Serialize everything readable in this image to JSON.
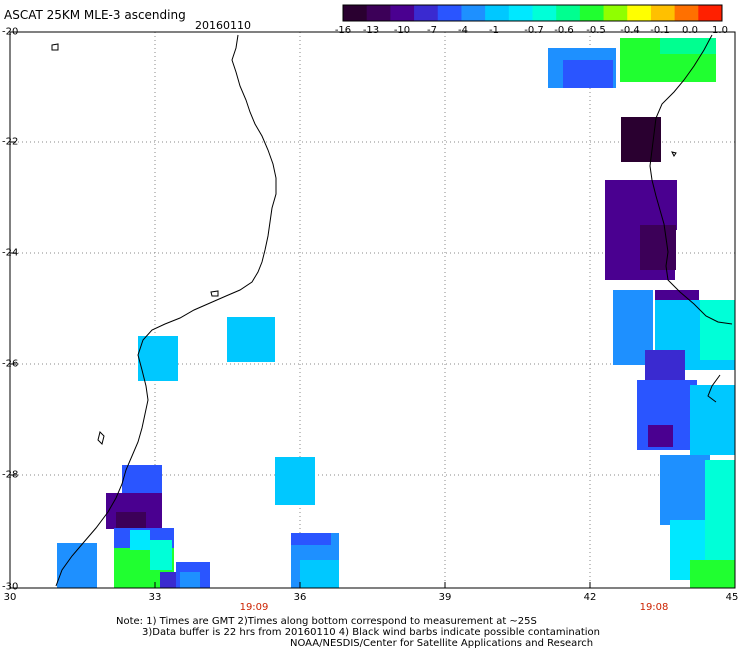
{
  "header": {
    "title": "ASCAT 25KM MLE-3 ascending",
    "date": "20160110"
  },
  "colorbar": {
    "colors": [
      "#2a0030",
      "#3c0058",
      "#4a0090",
      "#3a2ad0",
      "#2a55ff",
      "#1e90ff",
      "#00c8ff",
      "#00e8ff",
      "#00ffd8",
      "#00ff90",
      "#20ff30",
      "#90ff00",
      "#ffff00",
      "#ffc000",
      "#ff7000",
      "#ff2000"
    ],
    "ticks": [
      "-16",
      "-13",
      "-10",
      "-7",
      "-4",
      "-1",
      "-0.7",
      "-0.6",
      "-0.5",
      "-0.4",
      "-0.1",
      "0.0",
      "1.0"
    ]
  },
  "axes": {
    "x_ticks": [
      "30",
      "33",
      "36",
      "39",
      "42",
      "45"
    ],
    "y_ticks": [
      "-20",
      "-22",
      "-24",
      "-26",
      "-28",
      "-30"
    ],
    "x_range": [
      30,
      45
    ],
    "y_range": [
      -30,
      -20
    ]
  },
  "times": [
    "19:09",
    "19:08"
  ],
  "notes": [
    "Note: 1) Times are GMT 2)Times along bottom correspond to measurement at ~25S",
    "3)Data buffer is 22 hrs from 20160110 4) Black wind barbs indicate possible contamination",
    "NOAA/NESDIS/Center for Satellite Applications and Research"
  ]
}
